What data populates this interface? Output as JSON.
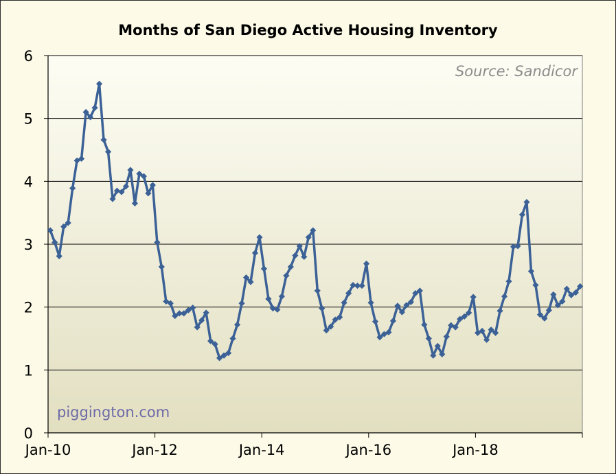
{
  "chart_data": {
    "type": "line",
    "title": "Months of San Diego Active Housing Inventory",
    "annotation_source": "Source: Sandicor",
    "watermark": "piggington.com",
    "xlabel": "",
    "ylabel": "",
    "ylim": [
      0,
      6
    ],
    "y_ticks": [
      "0",
      "1",
      "2",
      "3",
      "4",
      "5",
      "6"
    ],
    "x_tick_labels": [
      "Jan-10",
      "Jan-12",
      "Jan-14",
      "Jan-16",
      "Jan-18"
    ],
    "x_tick_month_index": [
      0,
      24,
      48,
      72,
      96
    ],
    "x_axis_months": 120,
    "grid": true,
    "line_color": "#3b6196",
    "plot_background_top": "#fdfdf4",
    "plot_background_bottom": "#e2dfc1",
    "series": [
      {
        "values": [
          3.22,
          3.03,
          2.81,
          3.28,
          3.34,
          3.89,
          4.33,
          4.36,
          5.1,
          5.02,
          5.17,
          5.55,
          4.66,
          4.47,
          3.72,
          3.85,
          3.83,
          3.92,
          4.18,
          3.65,
          4.12,
          4.08,
          3.81,
          3.94,
          3.03,
          2.64,
          2.09,
          2.06,
          1.86,
          1.9,
          1.9,
          1.95,
          1.99,
          1.68,
          1.79,
          1.91,
          1.46,
          1.41,
          1.19,
          1.23,
          1.27,
          1.5,
          1.72,
          2.06,
          2.47,
          2.4,
          2.86,
          3.11,
          2.61,
          2.13,
          1.98,
          1.96,
          2.17,
          2.5,
          2.64,
          2.82,
          2.97,
          2.8,
          3.11,
          3.22,
          2.26,
          1.98,
          1.63,
          1.69,
          1.8,
          1.84,
          2.07,
          2.22,
          2.35,
          2.34,
          2.34,
          2.69,
          2.07,
          1.77,
          1.52,
          1.57,
          1.6,
          1.78,
          2.02,
          1.92,
          2.03,
          2.08,
          2.22,
          2.26,
          1.72,
          1.5,
          1.23,
          1.38,
          1.25,
          1.53,
          1.71,
          1.68,
          1.81,
          1.85,
          1.91,
          2.16,
          1.59,
          1.62,
          1.48,
          1.64,
          1.59,
          1.94,
          2.17,
          2.41,
          2.96,
          2.97,
          3.47,
          3.67,
          2.57,
          2.35,
          1.88,
          1.82,
          1.95,
          2.2,
          2.03,
          2.09,
          2.29,
          2.19,
          2.23,
          2.33
        ]
      }
    ]
  }
}
